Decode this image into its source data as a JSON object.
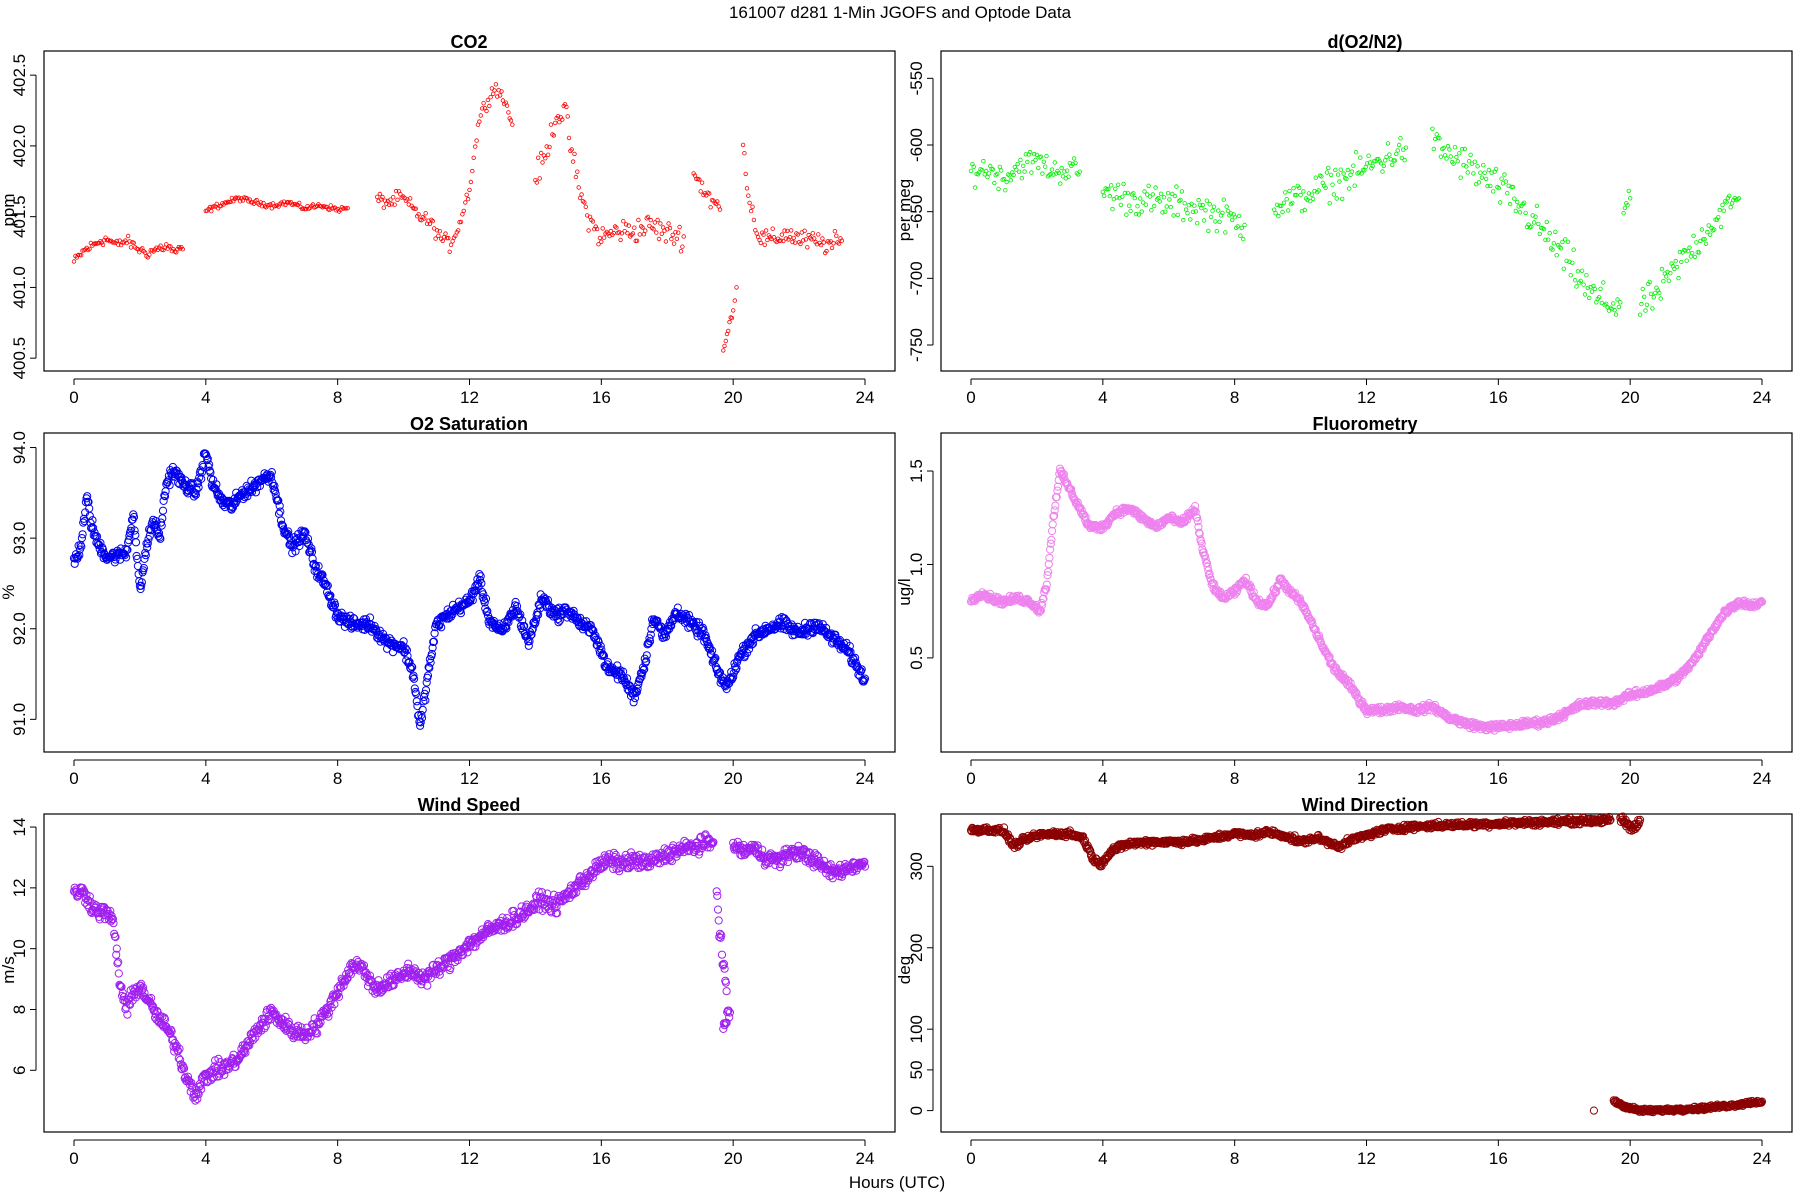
{
  "figure": {
    "title": "161007   d281   1-Min  JGOFS and Optode Data",
    "xlabel": "Hours (UTC)"
  },
  "chart_data": [
    {
      "type": "scatter",
      "title": "CO2",
      "ylabel": "ppm",
      "color": "#ff0000",
      "marker_size": "small",
      "xlim": [
        0,
        24
      ],
      "ylim": [
        400.48,
        402.6
      ],
      "xticks": [
        "0",
        "4",
        "8",
        "12",
        "16",
        "20",
        "24"
      ],
      "yticks": [
        "400.5",
        "401.0",
        "401.5",
        "402.0",
        "402.5"
      ],
      "segments": [
        {
          "x": [
            0.0,
            0.3,
            0.6,
            0.8,
            1.0,
            1.3,
            1.6,
            1.9,
            2.2,
            2.5,
            2.8,
            3.1,
            3.3
          ],
          "y": [
            401.18,
            401.26,
            401.3,
            401.33,
            401.34,
            401.3,
            401.33,
            401.28,
            401.24,
            401.27,
            401.29,
            401.25,
            401.27
          ],
          "spread": 0.03
        },
        {
          "x": [
            4.0,
            4.5,
            5.0,
            5.5,
            6.0,
            6.5,
            7.0,
            7.5,
            8.0,
            8.3
          ],
          "y": [
            401.54,
            401.59,
            401.63,
            401.6,
            401.58,
            401.6,
            401.56,
            401.58,
            401.55,
            401.56
          ],
          "spread": 0.015
        },
        {
          "x": [
            9.2,
            9.6,
            9.9,
            10.2,
            10.5,
            10.8,
            11.1,
            11.4,
            11.7,
            12.0,
            12.3,
            12.6,
            12.8,
            13.1,
            13.3
          ],
          "y": [
            401.62,
            401.6,
            401.64,
            401.58,
            401.5,
            401.46,
            401.36,
            401.3,
            401.45,
            401.7,
            402.2,
            402.35,
            402.42,
            402.3,
            402.15
          ],
          "spread": 0.04
        },
        {
          "x": [
            14.0,
            14.3,
            14.6,
            14.9,
            15.1,
            15.4,
            15.7,
            16.0,
            16.5,
            17.0,
            17.5,
            18.0,
            18.5
          ],
          "y": [
            401.78,
            401.92,
            402.2,
            402.25,
            401.95,
            401.62,
            401.45,
            401.35,
            401.4,
            401.4,
            401.44,
            401.38,
            401.36
          ],
          "spread": 0.07
        },
        {
          "x": [
            18.8,
            19.1,
            19.4,
            19.6
          ],
          "y": [
            401.8,
            401.7,
            401.6,
            401.55
          ],
          "spread": 0.07
        },
        {
          "x": [
            19.7,
            19.85,
            20.0,
            20.1
          ],
          "y": [
            400.55,
            400.7,
            400.85,
            401.0
          ],
          "spread": 0.02
        },
        {
          "x": [
            20.3,
            20.5,
            20.8,
            21.2,
            21.6,
            22.0,
            22.5,
            23.0,
            23.3
          ],
          "y": [
            402.0,
            401.6,
            401.35,
            401.33,
            401.38,
            401.34,
            401.32,
            401.3,
            401.33
          ],
          "spread": 0.06
        }
      ]
    },
    {
      "type": "scatter",
      "title": "d(O2/N2)",
      "ylabel": "per meg",
      "color": "#00ee00",
      "marker_size": "small",
      "xlim": [
        0,
        24
      ],
      "ylim": [
        -762,
        -537
      ],
      "xticks": [
        "0",
        "4",
        "8",
        "12",
        "16",
        "20",
        "24"
      ],
      "yticks": [
        "-750",
        "-700",
        "-650",
        "-600",
        "-550"
      ],
      "segments": [
        {
          "x": [
            0.0,
            0.5,
            1.0,
            1.5,
            2.0,
            2.5,
            3.0,
            3.3
          ],
          "y": [
            -620,
            -618,
            -625,
            -615,
            -612,
            -620,
            -618,
            -620
          ],
          "spread": 8
        },
        {
          "x": [
            4.0,
            4.8,
            5.6,
            6.4,
            7.2,
            7.8,
            8.3
          ],
          "y": [
            -635,
            -640,
            -643,
            -645,
            -650,
            -655,
            -660
          ],
          "spread": 10
        },
        {
          "x": [
            9.2,
            10.0,
            10.8,
            11.6,
            12.4,
            13.2
          ],
          "y": [
            -645,
            -640,
            -630,
            -622,
            -612,
            -602
          ],
          "spread": 10
        },
        {
          "x": [
            14.0,
            14.6,
            15.2,
            15.8,
            16.4,
            17.0,
            17.6,
            18.2,
            18.8,
            19.4,
            19.7
          ],
          "y": [
            -600,
            -608,
            -618,
            -628,
            -640,
            -655,
            -672,
            -690,
            -712,
            -720,
            -718
          ],
          "spread": 11
        },
        {
          "x": [
            19.8,
            20.0
          ],
          "y": [
            -650,
            -640
          ],
          "spread": 5
        },
        {
          "x": [
            20.3,
            20.8,
            21.3,
            21.8,
            22.3,
            22.8,
            23.3
          ],
          "y": [
            -720,
            -712,
            -695,
            -680,
            -665,
            -650,
            -640
          ],
          "spread": 10
        }
      ]
    },
    {
      "type": "scatter",
      "title": "O2 Saturation",
      "ylabel": "%",
      "color": "#0000ee",
      "marker_size": "large",
      "xlim": [
        0,
        24
      ],
      "ylim": [
        90.75,
        94.05
      ],
      "xticks": [
        "0",
        "4",
        "8",
        "12",
        "16",
        "20",
        "24"
      ],
      "yticks": [
        "91.0",
        "92.0",
        "93.0",
        "94.0"
      ],
      "segments": [
        {
          "x": [
            0.0,
            0.2,
            0.4,
            0.5,
            0.7,
            1.0,
            1.3,
            1.6,
            1.8,
            2.0,
            2.2,
            2.4,
            2.6,
            2.8,
            3.0,
            3.3,
            3.7,
            4.0,
            4.2,
            4.5,
            4.8,
            5.1,
            5.4,
            5.7,
            6.0,
            6.3,
            6.6,
            7.0,
            7.3,
            7.6,
            8.0,
            8.4,
            9.0,
            9.5,
            10.0,
            10.3,
            10.5,
            10.7,
            11.0,
            11.5,
            12.0,
            12.3,
            12.6,
            13.0,
            13.4,
            13.8,
            14.2,
            14.6,
            15.0,
            15.4,
            15.8,
            16.2,
            16.6,
            17.0,
            17.3,
            17.6,
            17.9,
            18.3,
            18.7,
            19.1,
            19.5,
            19.8,
            20.2,
            20.6,
            21.0,
            21.5,
            22.0,
            22.5,
            23.0,
            23.5,
            23.8,
            24.0
          ],
          "y": [
            92.75,
            92.9,
            93.45,
            93.2,
            92.95,
            92.8,
            92.8,
            92.85,
            93.3,
            92.4,
            92.9,
            93.2,
            93.0,
            93.6,
            93.75,
            93.6,
            93.5,
            93.95,
            93.6,
            93.4,
            93.35,
            93.5,
            93.55,
            93.65,
            93.7,
            93.2,
            92.9,
            93.05,
            92.7,
            92.5,
            92.15,
            92.05,
            92.05,
            91.85,
            91.8,
            91.5,
            90.9,
            91.4,
            92.05,
            92.2,
            92.3,
            92.55,
            92.1,
            91.95,
            92.25,
            91.85,
            92.35,
            92.15,
            92.2,
            92.05,
            91.95,
            91.55,
            91.5,
            91.25,
            91.6,
            92.15,
            91.9,
            92.2,
            92.05,
            91.95,
            91.55,
            91.35,
            91.7,
            91.9,
            92.0,
            92.05,
            91.95,
            92.05,
            91.9,
            91.75,
            91.55,
            91.45
          ],
          "spread": 0.06
        }
      ]
    },
    {
      "type": "scatter",
      "title": "Fluorometry",
      "ylabel": "ug/l",
      "color": "#ee82ee",
      "marker_size": "large",
      "xlim": [
        0,
        24
      ],
      "ylim": [
        0.05,
        1.65
      ],
      "xticks": [
        "0",
        "4",
        "8",
        "12",
        "16",
        "20",
        "24"
      ],
      "yticks": [
        "0.5",
        "1.0",
        "1.5"
      ],
      "segments": [
        {
          "x": [
            0.0,
            0.3,
            0.6,
            1.0,
            1.4,
            1.8,
            2.1,
            2.3,
            2.5,
            2.7,
            3.0,
            3.3,
            3.6,
            4.0,
            4.4,
            4.8,
            5.2,
            5.6,
            6.0,
            6.4,
            6.8,
            7.0,
            7.3,
            7.6,
            8.0,
            8.3,
            8.7,
            9.0,
            9.4,
            9.7,
            10.0,
            10.3,
            10.7,
            11.0,
            11.5,
            12.0,
            12.5,
            13.0,
            13.5,
            14.0,
            14.5,
            15.0,
            15.5,
            16.0,
            16.5,
            17.0,
            17.5,
            18.0,
            18.5,
            19.0,
            19.5,
            20.0,
            20.5,
            21.0,
            21.5,
            22.0,
            22.5,
            22.9,
            23.3,
            23.7,
            24.0
          ],
          "y": [
            0.8,
            0.85,
            0.82,
            0.8,
            0.82,
            0.8,
            0.75,
            0.9,
            1.25,
            1.5,
            1.4,
            1.3,
            1.2,
            1.2,
            1.28,
            1.3,
            1.25,
            1.2,
            1.25,
            1.22,
            1.3,
            1.1,
            0.9,
            0.82,
            0.85,
            0.92,
            0.8,
            0.78,
            0.92,
            0.85,
            0.8,
            0.7,
            0.55,
            0.45,
            0.35,
            0.22,
            0.22,
            0.24,
            0.22,
            0.24,
            0.18,
            0.15,
            0.13,
            0.13,
            0.14,
            0.15,
            0.16,
            0.2,
            0.25,
            0.26,
            0.26,
            0.3,
            0.32,
            0.35,
            0.4,
            0.5,
            0.65,
            0.75,
            0.8,
            0.78,
            0.8
          ],
          "spread": 0.015
        }
      ]
    },
    {
      "type": "scatter",
      "title": "Wind Speed",
      "ylabel": "m/s",
      "color": "#a020f0",
      "marker_size": "large",
      "xlim": [
        0,
        24
      ],
      "ylim": [
        4.3,
        14.1
      ],
      "xticks": [
        "0",
        "4",
        "8",
        "12",
        "16",
        "20",
        "24"
      ],
      "yticks": [
        "6",
        "8",
        "10",
        "12",
        "14"
      ],
      "segments": [
        {
          "x": [
            0.0,
            0.2,
            0.4,
            0.6,
            0.8,
            1.0,
            1.2,
            1.4,
            1.6,
            1.8,
            2.0,
            2.2,
            2.5,
            2.8,
            3.1,
            3.4,
            3.7,
            4.0,
            4.3,
            4.6,
            5.0,
            5.3,
            5.6,
            6.0,
            6.3,
            6.6,
            7.0,
            7.4,
            7.8,
            8.2,
            8.5,
            8.8,
            9.1,
            9.4,
            9.8,
            10.2,
            10.6,
            11.0,
            11.4,
            11.8,
            12.2,
            12.6,
            13.0,
            13.4,
            13.8,
            14.2,
            14.6,
            15.0,
            15.4,
            15.8,
            16.2,
            16.6,
            17.0,
            17.4,
            17.8,
            18.2,
            18.6,
            19.0,
            19.4
          ],
          "y": [
            11.8,
            11.9,
            11.7,
            11.3,
            11.2,
            11.2,
            10.8,
            8.8,
            8.0,
            8.5,
            8.8,
            8.4,
            7.8,
            7.4,
            6.8,
            5.8,
            5.2,
            5.8,
            6.0,
            6.1,
            6.4,
            6.9,
            7.4,
            7.9,
            7.6,
            7.3,
            7.2,
            7.5,
            8.2,
            9.0,
            9.5,
            9.3,
            8.7,
            8.8,
            9.0,
            9.3,
            9.0,
            9.3,
            9.6,
            10.0,
            10.3,
            10.6,
            10.8,
            11.0,
            11.3,
            11.6,
            11.4,
            11.8,
            12.2,
            12.6,
            12.9,
            12.8,
            12.9,
            12.8,
            13.0,
            13.2,
            13.3,
            13.4,
            13.5
          ],
          "spread": 0.22
        },
        {
          "x": [
            19.5,
            19.6,
            19.7,
            19.8
          ],
          "y": [
            12.0,
            10.5,
            9.5,
            8.6
          ],
          "spread": 0.25
        },
        {
          "x": [
            19.7,
            19.8,
            19.9
          ],
          "y": [
            7.4,
            7.7,
            7.9
          ],
          "spread": 0.2
        },
        {
          "x": [
            20.0,
            20.3,
            20.6,
            21.0,
            21.4,
            21.8,
            22.2,
            22.6,
            23.0,
            23.4,
            23.8,
            24.0
          ],
          "y": [
            13.4,
            13.2,
            13.3,
            13.0,
            12.9,
            13.2,
            13.1,
            12.8,
            12.5,
            12.6,
            12.8,
            12.7
          ],
          "spread": 0.2
        }
      ]
    },
    {
      "type": "scatter",
      "title": "Wind Direction",
      "ylabel": "deg",
      "color": "#8b0000",
      "marker_size": "large",
      "xlim": [
        0,
        24
      ],
      "ylim": [
        -14,
        352
      ],
      "xticks": [
        "0",
        "4",
        "8",
        "12",
        "16",
        "20",
        "24"
      ],
      "yticks": [
        "0",
        "50",
        "100",
        "200",
        "300"
      ],
      "segments": [
        {
          "x": [
            0.0,
            0.5,
            1.0,
            1.3,
            1.6,
            2.0,
            2.5,
            3.0,
            3.4,
            3.7,
            3.9,
            4.3,
            4.8,
            5.5,
            6.2,
            7.0,
            7.6,
            8.0,
            8.5,
            9.0,
            9.5,
            10.0,
            10.5,
            10.8,
            11.2,
            11.6,
            12.0,
            12.6,
            13.2,
            14.0,
            14.8,
            15.6,
            16.4,
            17.2,
            18.0,
            18.8,
            19.4
          ],
          "y": [
            345,
            345,
            343,
            325,
            332,
            338,
            340,
            340,
            335,
            310,
            302,
            320,
            328,
            330,
            330,
            332,
            337,
            340,
            338,
            342,
            338,
            330,
            335,
            330,
            325,
            333,
            338,
            345,
            348,
            350,
            351,
            352,
            353,
            354,
            355,
            356,
            357
          ],
          "spread": 3
        },
        {
          "x": [
            19.7,
            19.9,
            20.1,
            20.3
          ],
          "y": [
            357,
            352,
            345,
            357
          ],
          "spread": 5
        },
        {
          "x": [
            19.5,
            19.8,
            20.0,
            20.3,
            20.7,
            21.2,
            21.7,
            22.2,
            22.7,
            23.2,
            23.7,
            24.0
          ],
          "y": [
            12,
            6,
            3,
            0,
            0,
            1,
            2,
            3,
            5,
            7,
            10,
            11
          ],
          "spread": 2
        },
        {
          "x": [
            18.9
          ],
          "y": [
            0
          ],
          "spread": 0
        }
      ]
    }
  ]
}
